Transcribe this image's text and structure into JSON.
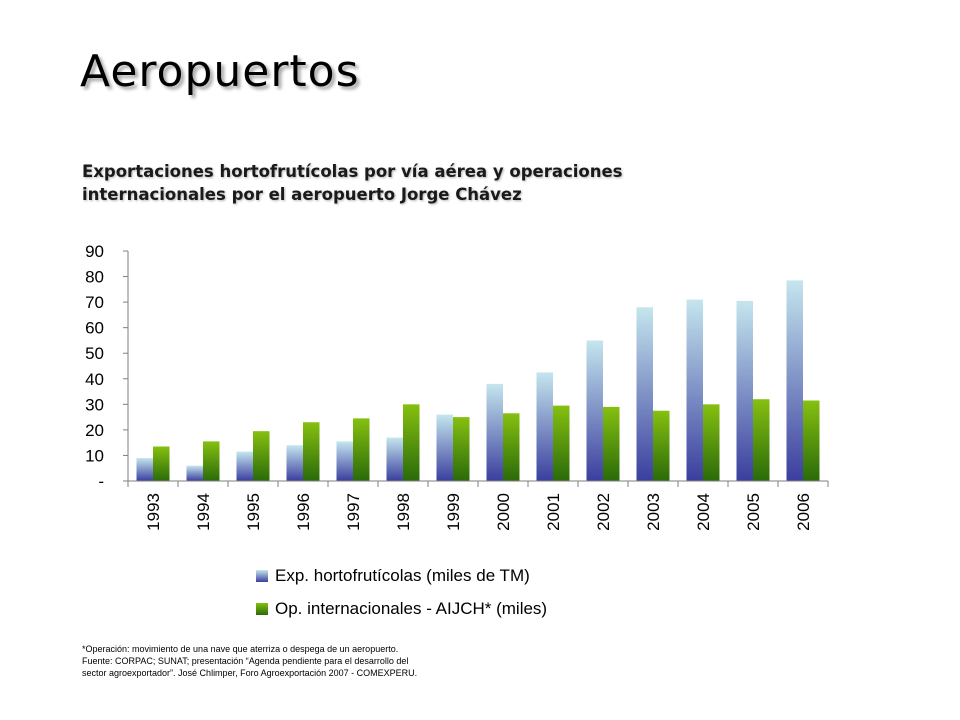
{
  "page": {
    "title": "Aeropuertos",
    "subtitle_lines": [
      "Exportaciones hortofrutícolas por vía aérea y operaciones",
      "internacionales por el aeropuerto Jorge Chávez"
    ],
    "footnote_lines": [
      "*Operación: movimiento de una nave que aterriza o despega de un aeropuerto.",
      "Fuente: CORPAC; SUNAT; presentación “Agenda pendiente para el desarrollo del",
      "sector agroexportador”. José Chlimper, Foro Agroexportación 2007 - COMEXPERU."
    ]
  },
  "chart_data": {
    "type": "bar",
    "categories": [
      "1993",
      "1994",
      "1995",
      "1996",
      "1997",
      "1998",
      "1999",
      "2000",
      "2001",
      "2002",
      "2003",
      "2004",
      "2005",
      "2006"
    ],
    "series": [
      {
        "name": "Exp. hortofrutícolas (miles de TM)",
        "values": [
          9,
          6,
          11.5,
          14,
          15.5,
          17,
          26,
          38,
          42.5,
          55,
          68,
          71,
          70.5,
          78.5
        ],
        "color_top": "#c5e6ee",
        "color_bottom": "#3a3e9e"
      },
      {
        "name": "Op. internacionales - AIJCH* (miles)",
        "values": [
          13.5,
          15.5,
          19.5,
          23,
          24.5,
          30,
          25,
          26.5,
          29.5,
          29,
          27.5,
          30,
          32,
          31.5
        ],
        "color_top": "#86c010",
        "color_bottom": "#2a6a0a"
      }
    ],
    "y_ticks": [
      {
        "value": 0,
        "label": "-"
      },
      {
        "value": 10,
        "label": "10"
      },
      {
        "value": 20,
        "label": "20"
      },
      {
        "value": 30,
        "label": "30"
      },
      {
        "value": 40,
        "label": "40"
      },
      {
        "value": 50,
        "label": "50"
      },
      {
        "value": 60,
        "label": "60"
      },
      {
        "value": 70,
        "label": "70"
      },
      {
        "value": 80,
        "label": "80"
      },
      {
        "value": 90,
        "label": "90"
      }
    ],
    "ylim": [
      0,
      90
    ],
    "xlabel": "",
    "ylabel": "",
    "grid": false,
    "legend_position": "bottom"
  }
}
